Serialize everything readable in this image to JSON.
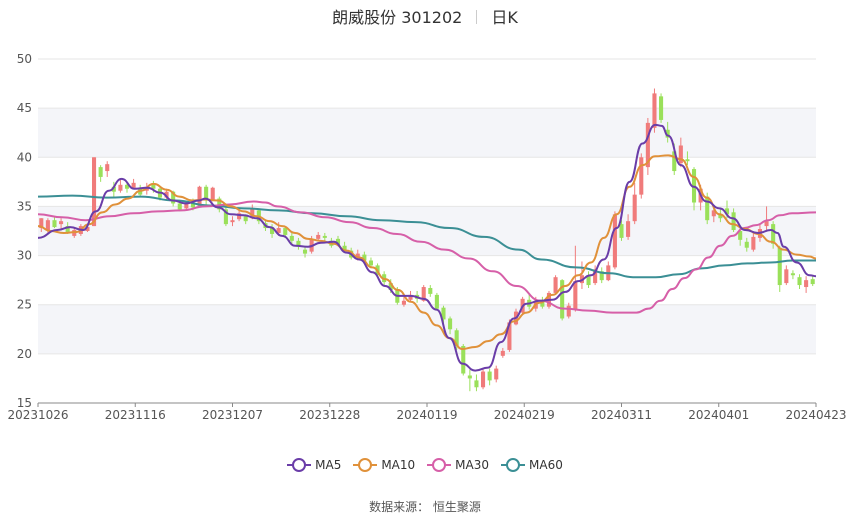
{
  "title": {
    "name": "朗威股份 301202",
    "period": "日K"
  },
  "source": "数据来源：  恒生聚源",
  "colors": {
    "up": "#f07b7b",
    "down": "#9ae05a",
    "grid": "#e6e6e6",
    "band": "#f4f5f9",
    "axis_text": "#555555",
    "MA5": "#6a3da8",
    "MA10": "#e0913a",
    "MA30": "#d65fa8",
    "MA60": "#3b8f95"
  },
  "chart_data": {
    "type": "candlestick",
    "y_axis": {
      "min": 15,
      "max": 50,
      "ticks": [
        15,
        20,
        25,
        30,
        35,
        40,
        45,
        50
      ]
    },
    "x_tick_labels": [
      "20231026",
      "20231116",
      "20231207",
      "20231228",
      "20240119",
      "20240219",
      "20240311",
      "20240401",
      "20240423"
    ],
    "legend": [
      "MA5",
      "MA10",
      "MA30",
      "MA60"
    ],
    "candles": [
      [
        32.8,
        33.8,
        33.8,
        32.4
      ],
      [
        32.6,
        33.6,
        33.8,
        32.2
      ],
      [
        33.6,
        32.9,
        34.0,
        32.8
      ],
      [
        33.2,
        33.5,
        33.8,
        32.6
      ],
      [
        33.0,
        32.4,
        33.4,
        32.2
      ],
      [
        32.0,
        32.6,
        32.8,
        31.8
      ],
      [
        32.2,
        33.0,
        33.2,
        32.0
      ],
      [
        32.5,
        32.9,
        33.1,
        32.4
      ],
      [
        33.0,
        40.0,
        40.0,
        33.0
      ],
      [
        39.0,
        38.0,
        39.2,
        37.5
      ],
      [
        38.6,
        39.3,
        39.6,
        38.0
      ],
      [
        37.0,
        36.5,
        37.5,
        36.0
      ],
      [
        36.6,
        37.2,
        37.8,
        36.4
      ],
      [
        37.2,
        36.8,
        37.4,
        36.4
      ],
      [
        36.9,
        37.4,
        37.8,
        36.8
      ],
      [
        36.8,
        36.2,
        37.2,
        36.0
      ],
      [
        36.6,
        37.0,
        37.4,
        36.2
      ],
      [
        37.2,
        36.8,
        37.6,
        36.4
      ],
      [
        36.8,
        35.9,
        37.0,
        35.6
      ],
      [
        35.9,
        36.5,
        36.8,
        35.6
      ],
      [
        36.5,
        35.3,
        36.6,
        35.0
      ],
      [
        35.3,
        34.7,
        35.6,
        34.5
      ],
      [
        34.8,
        35.4,
        35.6,
        34.6
      ],
      [
        35.4,
        34.9,
        35.8,
        34.6
      ],
      [
        35.0,
        37.0,
        37.1,
        34.9
      ],
      [
        37.0,
        35.6,
        37.2,
        35.2
      ],
      [
        35.7,
        36.9,
        37.0,
        35.5
      ],
      [
        35.8,
        34.7,
        36.0,
        34.4
      ],
      [
        34.7,
        33.2,
        34.9,
        33.0
      ],
      [
        33.4,
        33.6,
        34.0,
        33.0
      ],
      [
        33.7,
        34.3,
        34.8,
        33.5
      ],
      [
        34.0,
        33.5,
        34.2,
        33.2
      ],
      [
        33.8,
        34.8,
        35.2,
        33.7
      ],
      [
        34.6,
        33.5,
        34.8,
        33.2
      ],
      [
        33.3,
        32.8,
        33.6,
        32.5
      ],
      [
        32.9,
        32.2,
        33.2,
        31.8
      ],
      [
        32.3,
        32.8,
        33.4,
        32.0
      ],
      [
        32.8,
        32.1,
        33.0,
        31.8
      ],
      [
        32.0,
        31.5,
        32.4,
        31.2
      ],
      [
        31.5,
        30.9,
        31.8,
        30.6
      ],
      [
        30.6,
        30.2,
        30.9,
        29.8
      ],
      [
        30.4,
        31.6,
        32.0,
        30.2
      ],
      [
        31.7,
        32.1,
        32.4,
        31.5
      ],
      [
        32.0,
        31.8,
        32.3,
        31.4
      ],
      [
        31.5,
        31.0,
        31.8,
        30.8
      ],
      [
        31.7,
        31.1,
        32.0,
        31.0
      ],
      [
        31.0,
        30.6,
        31.4,
        30.4
      ],
      [
        30.5,
        29.8,
        30.8,
        29.6
      ],
      [
        29.8,
        30.2,
        30.6,
        29.5
      ],
      [
        30.1,
        29.5,
        30.4,
        29.2
      ],
      [
        29.5,
        29.0,
        29.8,
        28.7
      ],
      [
        29.0,
        28.0,
        29.2,
        27.8
      ],
      [
        28.1,
        27.3,
        28.4,
        27.0
      ],
      [
        27.2,
        26.5,
        27.6,
        26.2
      ],
      [
        26.6,
        25.2,
        26.8,
        25.0
      ],
      [
        25.0,
        25.4,
        25.8,
        24.8
      ],
      [
        25.5,
        26.0,
        26.4,
        25.3
      ],
      [
        26.0,
        25.6,
        26.4,
        25.2
      ],
      [
        25.4,
        26.8,
        27.0,
        25.3
      ],
      [
        26.7,
        26.1,
        27.0,
        25.8
      ],
      [
        26.0,
        24.6,
        26.2,
        24.4
      ],
      [
        24.7,
        23.5,
        24.9,
        23.0
      ],
      [
        23.6,
        22.5,
        23.8,
        22.0
      ],
      [
        22.4,
        20.8,
        22.6,
        20.4
      ],
      [
        20.8,
        18.0,
        21.0,
        17.8
      ],
      [
        17.8,
        17.5,
        18.4,
        16.2
      ],
      [
        17.3,
        16.6,
        17.9,
        16.2
      ],
      [
        16.6,
        18.2,
        18.4,
        16.4
      ],
      [
        18.2,
        17.3,
        18.5,
        16.8
      ],
      [
        17.4,
        18.5,
        18.8,
        17.1
      ],
      [
        19.8,
        20.3,
        20.6,
        19.6
      ],
      [
        20.4,
        23.2,
        23.5,
        20.2
      ],
      [
        23.0,
        24.3,
        24.6,
        22.9
      ],
      [
        24.2,
        25.6,
        25.8,
        24.0
      ],
      [
        25.5,
        24.8,
        26.0,
        24.5
      ],
      [
        24.6,
        25.4,
        25.8,
        24.3
      ],
      [
        25.4,
        24.8,
        25.8,
        24.6
      ],
      [
        24.8,
        26.2,
        26.4,
        24.6
      ],
      [
        26.2,
        27.8,
        28.0,
        26.0
      ],
      [
        27.5,
        23.6,
        27.6,
        23.4
      ],
      [
        23.8,
        24.9,
        25.2,
        23.6
      ],
      [
        24.5,
        27.4,
        31.0,
        24.3
      ],
      [
        27.2,
        28.0,
        29.4,
        26.6
      ],
      [
        28.0,
        27.0,
        28.4,
        26.7
      ],
      [
        27.2,
        28.6,
        29.0,
        27.0
      ],
      [
        28.4,
        27.5,
        28.8,
        27.2
      ],
      [
        27.5,
        29.0,
        29.4,
        27.4
      ],
      [
        28.8,
        34.2,
        34.5,
        28.6
      ],
      [
        33.2,
        31.8,
        33.6,
        31.5
      ],
      [
        31.9,
        33.5,
        34.2,
        31.6
      ],
      [
        33.5,
        36.2,
        37.4,
        33.2
      ],
      [
        36.2,
        40.0,
        40.4,
        35.8
      ],
      [
        39.0,
        43.5,
        44.0,
        38.2
      ],
      [
        43.0,
        46.5,
        47.0,
        42.5
      ],
      [
        46.2,
        43.8,
        46.5,
        43.5
      ],
      [
        42.8,
        42.0,
        43.6,
        41.5
      ],
      [
        40.6,
        38.6,
        41.4,
        38.2
      ],
      [
        39.4,
        41.2,
        42.0,
        39.0
      ],
      [
        39.8,
        39.6,
        40.6,
        39.2
      ],
      [
        38.8,
        35.4,
        39.0,
        34.6
      ],
      [
        35.4,
        36.8,
        37.2,
        34.6
      ],
      [
        36.0,
        33.6,
        36.4,
        33.2
      ],
      [
        34.0,
        34.6,
        35.0,
        33.4
      ],
      [
        34.2,
        33.8,
        34.8,
        33.4
      ],
      [
        34.8,
        34.2,
        35.6,
        33.8
      ],
      [
        34.4,
        32.6,
        34.8,
        32.4
      ],
      [
        32.5,
        31.6,
        32.9,
        31.0
      ],
      [
        31.4,
        30.8,
        31.8,
        30.4
      ],
      [
        30.6,
        31.9,
        32.3,
        30.4
      ],
      [
        31.8,
        32.7,
        33.2,
        31.4
      ],
      [
        33.0,
        33.5,
        35.0,
        32.6
      ],
      [
        33.2,
        31.2,
        33.5,
        30.7
      ],
      [
        30.8,
        27.0,
        31.0,
        26.3
      ],
      [
        27.2,
        28.6,
        29.0,
        27.0
      ],
      [
        28.2,
        28.0,
        28.5,
        27.6
      ],
      [
        27.8,
        27.0,
        28.1,
        26.6
      ],
      [
        26.8,
        27.5,
        27.9,
        26.2
      ],
      [
        27.6,
        27.1,
        27.9,
        26.9
      ]
    ],
    "MA5": [
      [
        0,
        31.8
      ],
      [
        3,
        32.6
      ],
      [
        5,
        32.9
      ],
      [
        7,
        32.6
      ],
      [
        9,
        34.5
      ],
      [
        11,
        36.6
      ],
      [
        13,
        37.8
      ],
      [
        15,
        36.8
      ],
      [
        17,
        36.9
      ],
      [
        19,
        36.4
      ],
      [
        21,
        35.6
      ],
      [
        23,
        35.3
      ],
      [
        25,
        35.6
      ],
      [
        26,
        35.8
      ],
      [
        28,
        34.9
      ],
      [
        30,
        34.2
      ],
      [
        32,
        34.1
      ],
      [
        34,
        33.8
      ],
      [
        36,
        32.9
      ],
      [
        38,
        32.0
      ],
      [
        40,
        31.0
      ],
      [
        42,
        30.9
      ],
      [
        44,
        31.3
      ],
      [
        46,
        31.4
      ],
      [
        48,
        30.3
      ],
      [
        50,
        29.6
      ],
      [
        52,
        28.3
      ],
      [
        54,
        26.9
      ],
      [
        56,
        25.9
      ],
      [
        58,
        25.9
      ],
      [
        60,
        25.6
      ],
      [
        62,
        24.5
      ],
      [
        64,
        21.6
      ],
      [
        66,
        19.0
      ],
      [
        68,
        18.3
      ],
      [
        70,
        18.6
      ],
      [
        72,
        21.2
      ],
      [
        74,
        23.6
      ],
      [
        76,
        25.1
      ],
      [
        78,
        25.4
      ],
      [
        80,
        25.5
      ],
      [
        82,
        26.3
      ],
      [
        84,
        27.4
      ],
      [
        86,
        28.0
      ],
      [
        88,
        29.6
      ],
      [
        90,
        32.8
      ],
      [
        92,
        37.5
      ],
      [
        94,
        41.4
      ],
      [
        96,
        43.3
      ],
      [
        97,
        43.2
      ],
      [
        98,
        42.2
      ],
      [
        100,
        39.2
      ],
      [
        102,
        37.0
      ],
      [
        104,
        35.5
      ],
      [
        106,
        34.8
      ],
      [
        108,
        33.8
      ],
      [
        110,
        32.6
      ],
      [
        112,
        32.3
      ],
      [
        114,
        32.6
      ],
      [
        115,
        32.3
      ],
      [
        116,
        30.9
      ],
      [
        118,
        29.3
      ],
      [
        120,
        28.0
      ],
      [
        121,
        27.9
      ]
    ],
    "MA10": [
      [
        0,
        33.0
      ],
      [
        2,
        32.5
      ],
      [
        4,
        32.3
      ],
      [
        6,
        32.4
      ],
      [
        8,
        33.2
      ],
      [
        10,
        34.4
      ],
      [
        12,
        35.2
      ],
      [
        14,
        35.8
      ],
      [
        16,
        36.6
      ],
      [
        18,
        37.3
      ],
      [
        20,
        36.7
      ],
      [
        22,
        36.0
      ],
      [
        24,
        35.6
      ],
      [
        26,
        35.7
      ],
      [
        28,
        35.6
      ],
      [
        30,
        35.0
      ],
      [
        32,
        34.5
      ],
      [
        34,
        34.0
      ],
      [
        36,
        33.5
      ],
      [
        38,
        33.0
      ],
      [
        40,
        32.3
      ],
      [
        42,
        31.7
      ],
      [
        44,
        31.5
      ],
      [
        46,
        31.2
      ],
      [
        48,
        30.5
      ],
      [
        50,
        29.8
      ],
      [
        52,
        28.8
      ],
      [
        54,
        27.6
      ],
      [
        56,
        26.5
      ],
      [
        58,
        25.3
      ],
      [
        60,
        24.2
      ],
      [
        62,
        22.9
      ],
      [
        64,
        21.6
      ],
      [
        66,
        20.5
      ],
      [
        68,
        20.7
      ],
      [
        70,
        21.3
      ],
      [
        72,
        22.0
      ],
      [
        74,
        23.3
      ],
      [
        76,
        24.2
      ],
      [
        78,
        25.2
      ],
      [
        80,
        26.0
      ],
      [
        82,
        26.9
      ],
      [
        84,
        28.0
      ],
      [
        86,
        29.3
      ],
      [
        88,
        31.8
      ],
      [
        90,
        34.2
      ],
      [
        92,
        37.0
      ],
      [
        94,
        39.2
      ],
      [
        96,
        40.1
      ],
      [
        98,
        40.2
      ],
      [
        100,
        39.8
      ],
      [
        102,
        38.0
      ],
      [
        104,
        35.9
      ],
      [
        106,
        34.2
      ],
      [
        108,
        33.2
      ],
      [
        110,
        32.7
      ],
      [
        112,
        32.2
      ],
      [
        114,
        31.4
      ],
      [
        116,
        30.6
      ],
      [
        118,
        30.1
      ],
      [
        120,
        29.9
      ],
      [
        121,
        29.7
      ]
    ],
    "MA30": [
      [
        0,
        34.2
      ],
      [
        4,
        33.9
      ],
      [
        8,
        33.6
      ],
      [
        12,
        34.0
      ],
      [
        16,
        34.3
      ],
      [
        20,
        34.5
      ],
      [
        24,
        34.6
      ],
      [
        28,
        35.0
      ],
      [
        32,
        35.2
      ],
      [
        36,
        35.5
      ],
      [
        38,
        35.4
      ],
      [
        40,
        35.0
      ],
      [
        44,
        34.4
      ],
      [
        48,
        33.9
      ],
      [
        52,
        33.4
      ],
      [
        56,
        32.8
      ],
      [
        60,
        32.2
      ],
      [
        64,
        31.4
      ],
      [
        68,
        30.6
      ],
      [
        72,
        29.7
      ],
      [
        76,
        28.4
      ],
      [
        80,
        26.9
      ],
      [
        84,
        25.4
      ],
      [
        88,
        24.6
      ],
      [
        92,
        24.4
      ],
      [
        96,
        24.2
      ],
      [
        100,
        24.2
      ],
      [
        102,
        24.6
      ],
      [
        104,
        25.4
      ],
      [
        106,
        26.6
      ],
      [
        108,
        27.7
      ],
      [
        110,
        28.6
      ],
      [
        112,
        29.8
      ],
      [
        114,
        31.0
      ],
      [
        116,
        32.0
      ],
      [
        118,
        32.8
      ],
      [
        120,
        33.1
      ],
      [
        122,
        33.6
      ],
      [
        124,
        34.1
      ],
      [
        126,
        34.3
      ],
      [
        130,
        34.4
      ]
    ],
    "MA60": [
      [
        0,
        36.0
      ],
      [
        6,
        36.1
      ],
      [
        12,
        35.9
      ],
      [
        18,
        36.0
      ],
      [
        24,
        35.6
      ],
      [
        30,
        35.1
      ],
      [
        36,
        34.8
      ],
      [
        42,
        34.6
      ],
      [
        48,
        34.3
      ],
      [
        54,
        34.0
      ],
      [
        60,
        33.6
      ],
      [
        66,
        33.4
      ],
      [
        72,
        32.8
      ],
      [
        78,
        31.9
      ],
      [
        84,
        30.6
      ],
      [
        88,
        29.6
      ],
      [
        94,
        28.8
      ],
      [
        100,
        28.2
      ],
      [
        104,
        27.8
      ],
      [
        108,
        27.8
      ],
      [
        112,
        28.1
      ],
      [
        116,
        28.7
      ],
      [
        120,
        29.0
      ],
      [
        124,
        29.2
      ],
      [
        128,
        29.3
      ],
      [
        132,
        29.5
      ],
      [
        136,
        29.5
      ]
    ]
  }
}
